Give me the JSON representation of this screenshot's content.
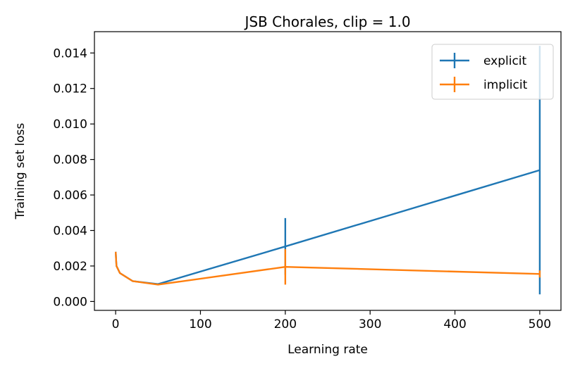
{
  "chart_data": {
    "type": "line",
    "title": "JSB Chorales, clip = 1.0",
    "xlabel": "Learning rate",
    "ylabel": "Training set loss",
    "xlim": [
      -25,
      525
    ],
    "ylim": [
      -0.0005,
      0.0152
    ],
    "xticks": [
      0,
      100,
      200,
      300,
      400,
      500
    ],
    "yticks": [
      0.0,
      0.002,
      0.004,
      0.006,
      0.008,
      0.01,
      0.012,
      0.014
    ],
    "xtick_labels": [
      "0",
      "100",
      "200",
      "300",
      "400",
      "500"
    ],
    "ytick_labels": [
      "0.000",
      "0.002",
      "0.004",
      "0.006",
      "0.008",
      "0.010",
      "0.012",
      "0.014"
    ],
    "grid": false,
    "legend_position": "top-right",
    "series": [
      {
        "name": "explicit",
        "color": "#1f77b4",
        "x": [
          0.1,
          0.5,
          1,
          5,
          20,
          50,
          200,
          500
        ],
        "y": [
          0.0028,
          0.0024,
          0.002,
          0.0016,
          0.00115,
          0.00098,
          0.0031,
          0.0074
        ],
        "yerr": [
          0.0,
          0.0,
          0.0,
          0.0,
          0.0,
          0.0,
          0.0016,
          0.007
        ]
      },
      {
        "name": "implicit",
        "color": "#ff7f0e",
        "x": [
          0.1,
          0.5,
          1,
          5,
          20,
          50,
          200,
          500
        ],
        "y": [
          0.0028,
          0.0024,
          0.002,
          0.0016,
          0.00115,
          0.00095,
          0.00195,
          0.00155
        ],
        "yerr": [
          0.0,
          0.0,
          0.0,
          0.0,
          0.0,
          0.0,
          0.001,
          0.0002
        ]
      }
    ]
  }
}
